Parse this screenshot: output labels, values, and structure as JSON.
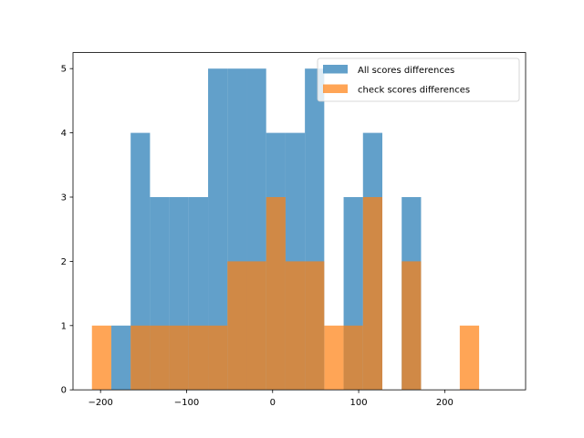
{
  "chart_data": {
    "type": "bar",
    "subtype": "overlaid-histogram",
    "title": "",
    "xlabel": "",
    "ylabel": "",
    "xlim": [
      -232,
      294
    ],
    "ylim": [
      0,
      5.25
    ],
    "x_ticks": [
      -200,
      -100,
      0,
      100,
      200
    ],
    "y_ticks": [
      0,
      1,
      2,
      3,
      4,
      5
    ],
    "grid": false,
    "legend_position": "top-right",
    "bin_edges": [
      -210,
      -187.5,
      -165,
      -142.5,
      -120,
      -97.5,
      -75,
      -52.5,
      -30,
      -7.5,
      15,
      37.5,
      60,
      82.5,
      105,
      127.5,
      150,
      172.5,
      195,
      217.5,
      240,
      262.5,
      285
    ],
    "series": [
      {
        "name": "All scores differences",
        "color": "#1f77b4",
        "opacity": 0.7,
        "counts": [
          0,
          1,
          4,
          3,
          3,
          3,
          5,
          5,
          5,
          4,
          4,
          5,
          0,
          3,
          4,
          0,
          3,
          0,
          0,
          0,
          0,
          0
        ]
      },
      {
        "name": "check scores differences",
        "color": "#ff7f0e",
        "opacity": 0.7,
        "counts": [
          1,
          0,
          1,
          1,
          1,
          1,
          1,
          2,
          2,
          3,
          2,
          2,
          1,
          1,
          3,
          0,
          2,
          0,
          0,
          1,
          0,
          0
        ]
      }
    ]
  }
}
